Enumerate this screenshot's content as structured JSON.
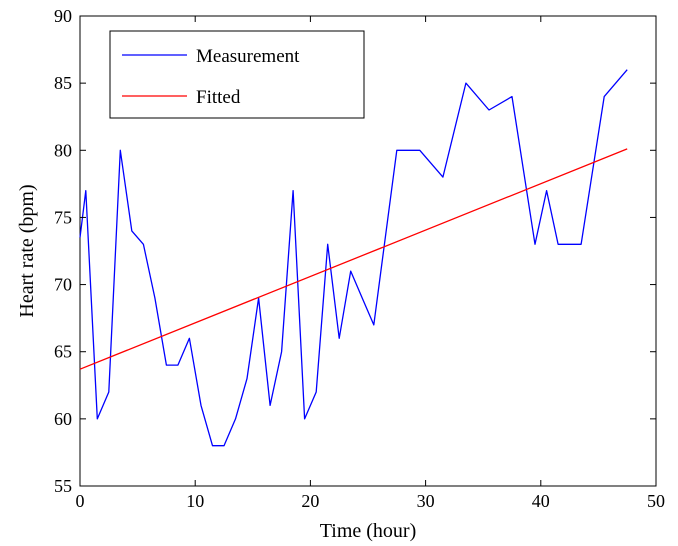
{
  "chart_data": {
    "type": "line",
    "xlabel": "Time (hour)",
    "ylabel": "Heart rate (bpm)",
    "xlim": [
      0,
      50
    ],
    "ylim": [
      55,
      90
    ],
    "x_ticks": [
      0,
      10,
      20,
      30,
      40,
      50
    ],
    "y_ticks": [
      55,
      60,
      65,
      70,
      75,
      80,
      85,
      90
    ],
    "grid": false,
    "legend_position": "top-left",
    "series": [
      {
        "name": "Measurement",
        "color": "#0000ff",
        "x": [
          0,
          0.5,
          1.5,
          2.5,
          3.5,
          4.5,
          5.5,
          6.5,
          7.5,
          8.5,
          9.5,
          10.5,
          11.5,
          12.5,
          13.5,
          14.5,
          15.5,
          16.5,
          17.5,
          18.5,
          19.5,
          20.5,
          21.5,
          22.5,
          23.5,
          24.5,
          25.5,
          27.5,
          29.5,
          31.5,
          33.5,
          35.5,
          37.5,
          39.5,
          40.5,
          41.5,
          43.5,
          45.5,
          47.5
        ],
        "y": [
          73.5,
          77,
          60,
          62,
          80,
          74,
          73,
          69,
          64,
          64,
          66,
          61,
          58,
          58,
          60,
          63,
          69,
          61,
          65,
          77,
          60,
          62,
          73,
          66,
          71,
          69,
          67,
          80,
          80,
          78,
          85,
          83,
          84,
          73,
          77,
          73,
          73,
          84,
          86
        ]
      },
      {
        "name": "Fitted",
        "color": "#ff0000",
        "x": [
          0,
          47.5
        ],
        "y": [
          63.7,
          80.1
        ]
      }
    ]
  }
}
